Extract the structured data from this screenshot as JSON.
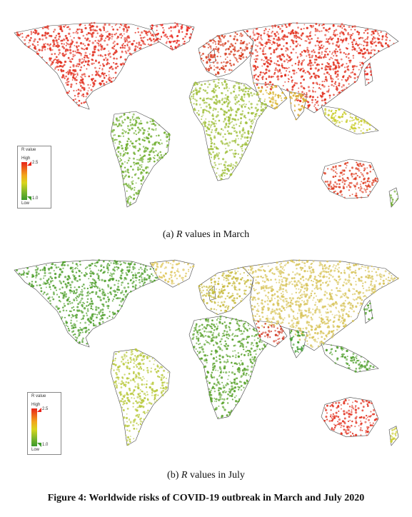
{
  "panels": [
    {
      "id": "a",
      "caption_prefix": "(a)",
      "caption_var": "R",
      "caption_suffix": "values in March",
      "legend": {
        "title": "R value",
        "high": "High",
        "low": "Low",
        "max": "2.5",
        "min": "1.0"
      },
      "scheme": "march"
    },
    {
      "id": "b",
      "caption_prefix": "(b)",
      "caption_var": "R",
      "caption_suffix": "values in July",
      "legend": {
        "title": "R value",
        "high": "High",
        "low": "Low",
        "max": "2.5",
        "min": "1.0"
      },
      "scheme": "july"
    }
  ],
  "figure_caption": "Figure 4: Worldwide risks of COVID-19 outbreak in March and July 2020",
  "colors": {
    "high": "#e8241a",
    "mid": "#d9d51c",
    "low": "#3c9a2b",
    "land_outline": "#444444"
  }
}
